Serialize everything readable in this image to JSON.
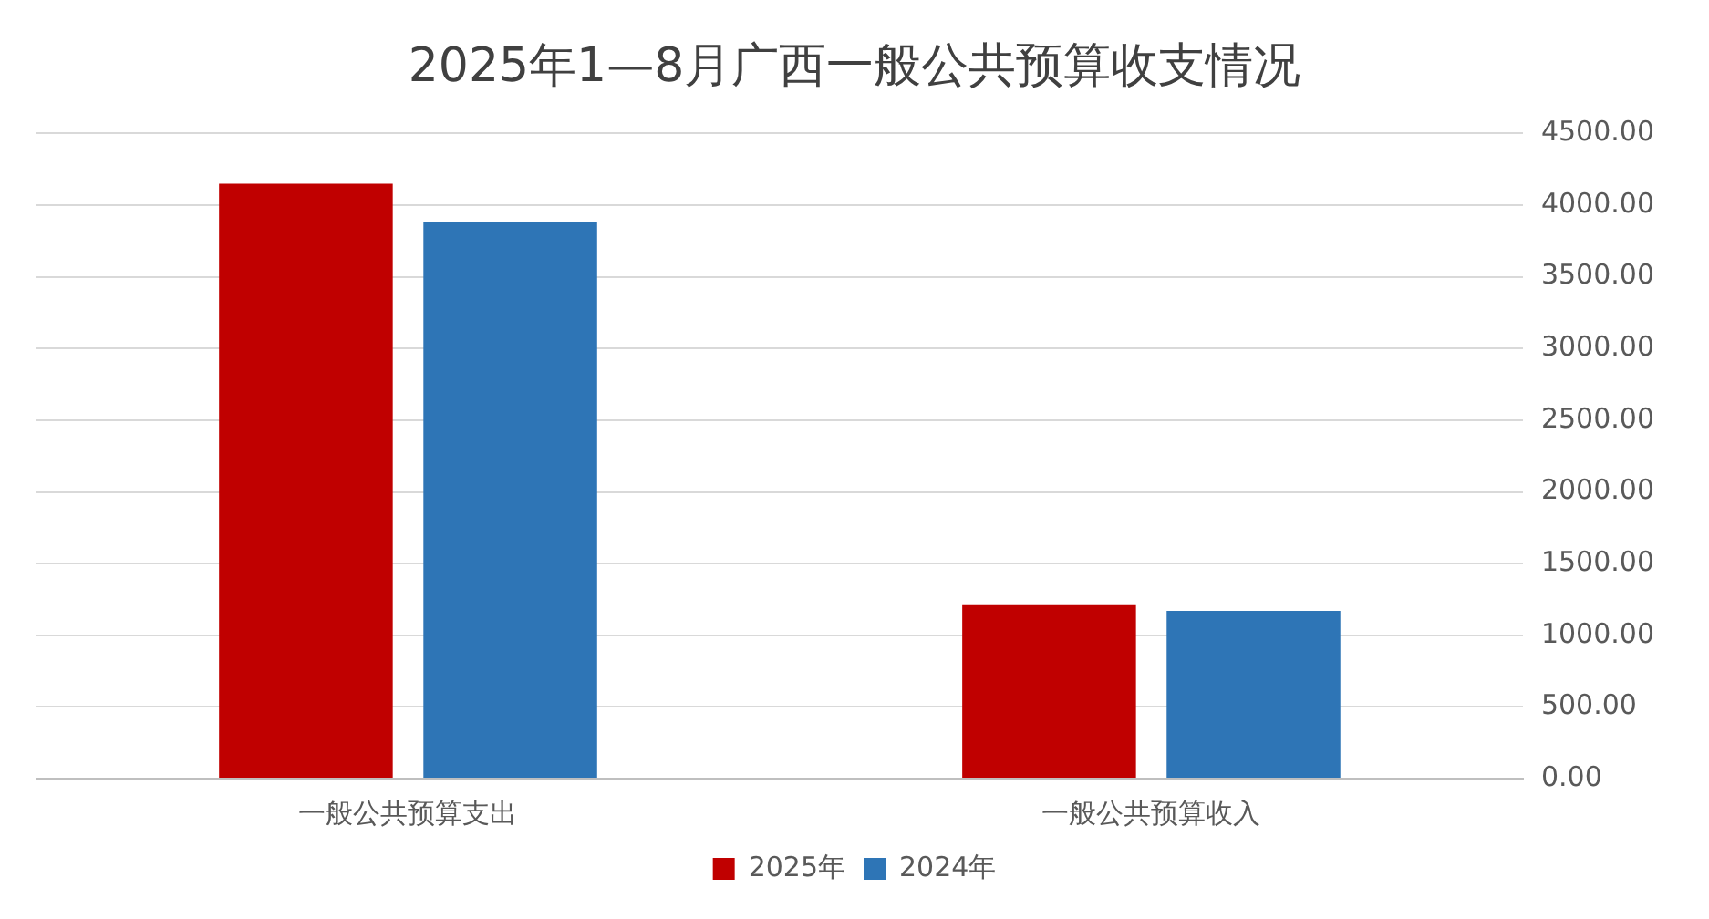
{
  "chart_data": {
    "type": "bar",
    "title": "2025年1—8月广西一般公共预算收支情况",
    "categories": [
      "一般公共预算支出",
      "一般公共预算收入"
    ],
    "series": [
      {
        "name": "2025年",
        "color": "#c00000",
        "values": [
          4150,
          1210
        ]
      },
      {
        "name": "2024年",
        "color": "#2e75b6",
        "values": [
          3880,
          1170
        ]
      }
    ],
    "ylim": [
      0,
      4500
    ],
    "yticks": [
      {
        "value": 0,
        "label": "0.00"
      },
      {
        "value": 500,
        "label": "500.00"
      },
      {
        "value": 1000,
        "label": "1000.00"
      },
      {
        "value": 1500,
        "label": "1500.00"
      },
      {
        "value": 2000,
        "label": "2000.00"
      },
      {
        "value": 2500,
        "label": "2500.00"
      },
      {
        "value": 3000,
        "label": "3000.00"
      },
      {
        "value": 3500,
        "label": "3500.00"
      },
      {
        "value": 4000,
        "label": "4000.00"
      },
      {
        "value": 4500,
        "label": "4500.00"
      }
    ],
    "grid": "y",
    "legend": "bottom"
  }
}
